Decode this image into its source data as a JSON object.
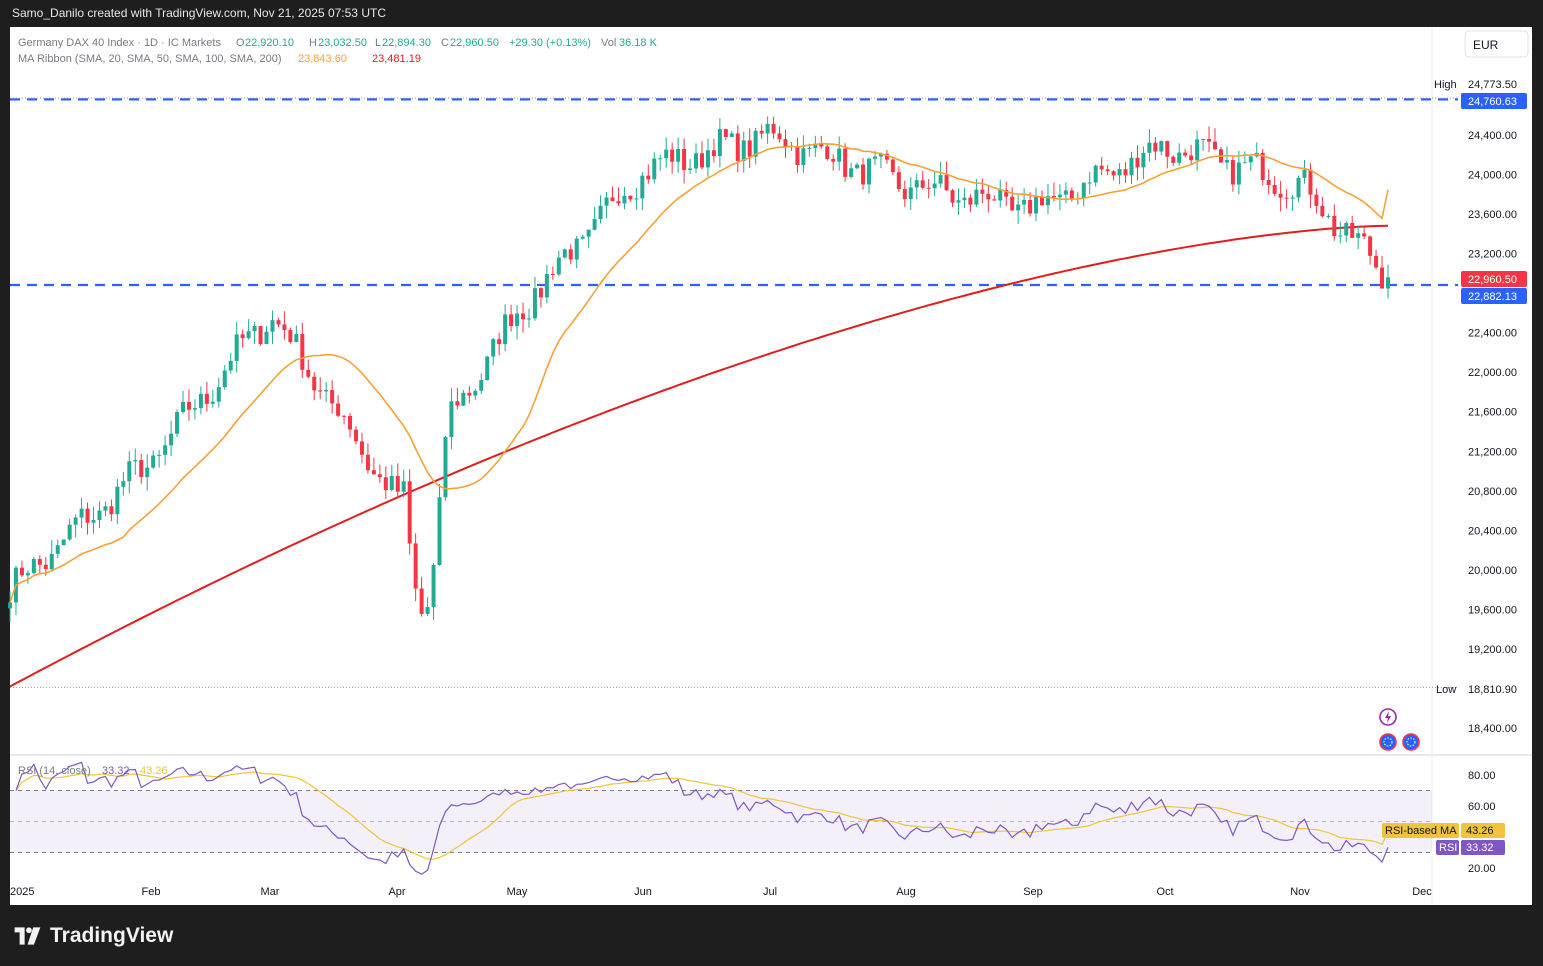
{
  "header": {
    "created_by": "Samo_Danilo created with TradingView.com, Nov 21, 2025 07:53 UTC"
  },
  "symbol": {
    "name": "Germany DAX 40 Index · 1D · IC Markets",
    "open_label": "O",
    "open": "22,920.10",
    "high_label": "H",
    "high": "23,032.50",
    "low_label": "L",
    "low": "22,894.30",
    "close_label": "C",
    "close": "22,960.50",
    "change": "+29.30 (+0.13%)",
    "vol_label": "Vol",
    "vol": "36.18 K"
  },
  "ma_ribbon": {
    "label": "MA Ribbon (SMA, 20, SMA, 50, SMA, 100, SMA, 200)",
    "val1": "23,843.60",
    "val2": "23,481.19"
  },
  "currency": "EUR",
  "markers": {
    "high_label": "High",
    "high_value": "24,773.50",
    "low_label": "Low",
    "low_value": "18,810.90",
    "level_top": "24,760.63",
    "last_price": "22,960.50",
    "level_bottom": "22,882.13"
  },
  "rsi": {
    "label": "RSI (14, close)",
    "rsi_value": "33.32",
    "ma_value": "43.26",
    "ma_tag": "RSI-based MA",
    "rsi_tag": "RSI"
  },
  "footer": {
    "brand": "TradingView"
  },
  "colors": {
    "up": "#22ab94",
    "down": "#f23645",
    "ma20": "#f5a233",
    "ma200": "#e01e1e",
    "level": "#2962ff",
    "rsi": "#7e57c2",
    "rsi_ma": "#f0c53b"
  },
  "chart_data": [
    {
      "type": "candlestick",
      "title": "Germany DAX 40 Index · 1D · IC Markets",
      "ylim": [
        18300,
        25000
      ],
      "y_ticks": [
        "24,400.00",
        "24,000.00",
        "23,600.00",
        "23,200.00",
        "22,400.00",
        "22,000.00",
        "21,600.00",
        "21,200.00",
        "20,800.00",
        "20,400.00",
        "20,000.00",
        "19,600.00",
        "19,200.00",
        "18,400.00"
      ],
      "x_ticks": [
        "2025",
        "Feb",
        "Mar",
        "Apr",
        "May",
        "Jun",
        "Jul",
        "Aug",
        "Sep",
        "Oct",
        "Nov",
        "Dec"
      ],
      "horizontal_levels": [
        24760.63,
        22882.13
      ],
      "high": 24773.5,
      "low": 18810.9,
      "last": 22960.5,
      "anchor_closes": [
        [
          "2025",
          19800
        ],
        [
          "Feb",
          21100
        ],
        [
          "Mar",
          22600
        ],
        [
          "Apr",
          20700
        ],
        [
          "May",
          22600
        ],
        [
          "Jun",
          24050
        ],
        [
          "Jul",
          24400
        ],
        [
          "Aug",
          23900
        ],
        [
          "Sep",
          23650
        ],
        [
          "Oct",
          24300
        ],
        [
          "Nov",
          23900
        ],
        [
          "Nov 21",
          22960.5
        ]
      ],
      "series": [
        {
          "name": "SMA 20",
          "last": 23843.6
        },
        {
          "name": "SMA 200",
          "last": 23481.19
        }
      ]
    },
    {
      "type": "line",
      "title": "RSI (14, close)",
      "ylim": [
        10,
        90
      ],
      "y_ticks": [
        "80.00",
        "60.00",
        "20.00"
      ],
      "bands": [
        70,
        50,
        30
      ],
      "series": [
        {
          "name": "RSI",
          "last": 33.32
        },
        {
          "name": "RSI-based MA",
          "last": 43.26
        }
      ]
    }
  ]
}
